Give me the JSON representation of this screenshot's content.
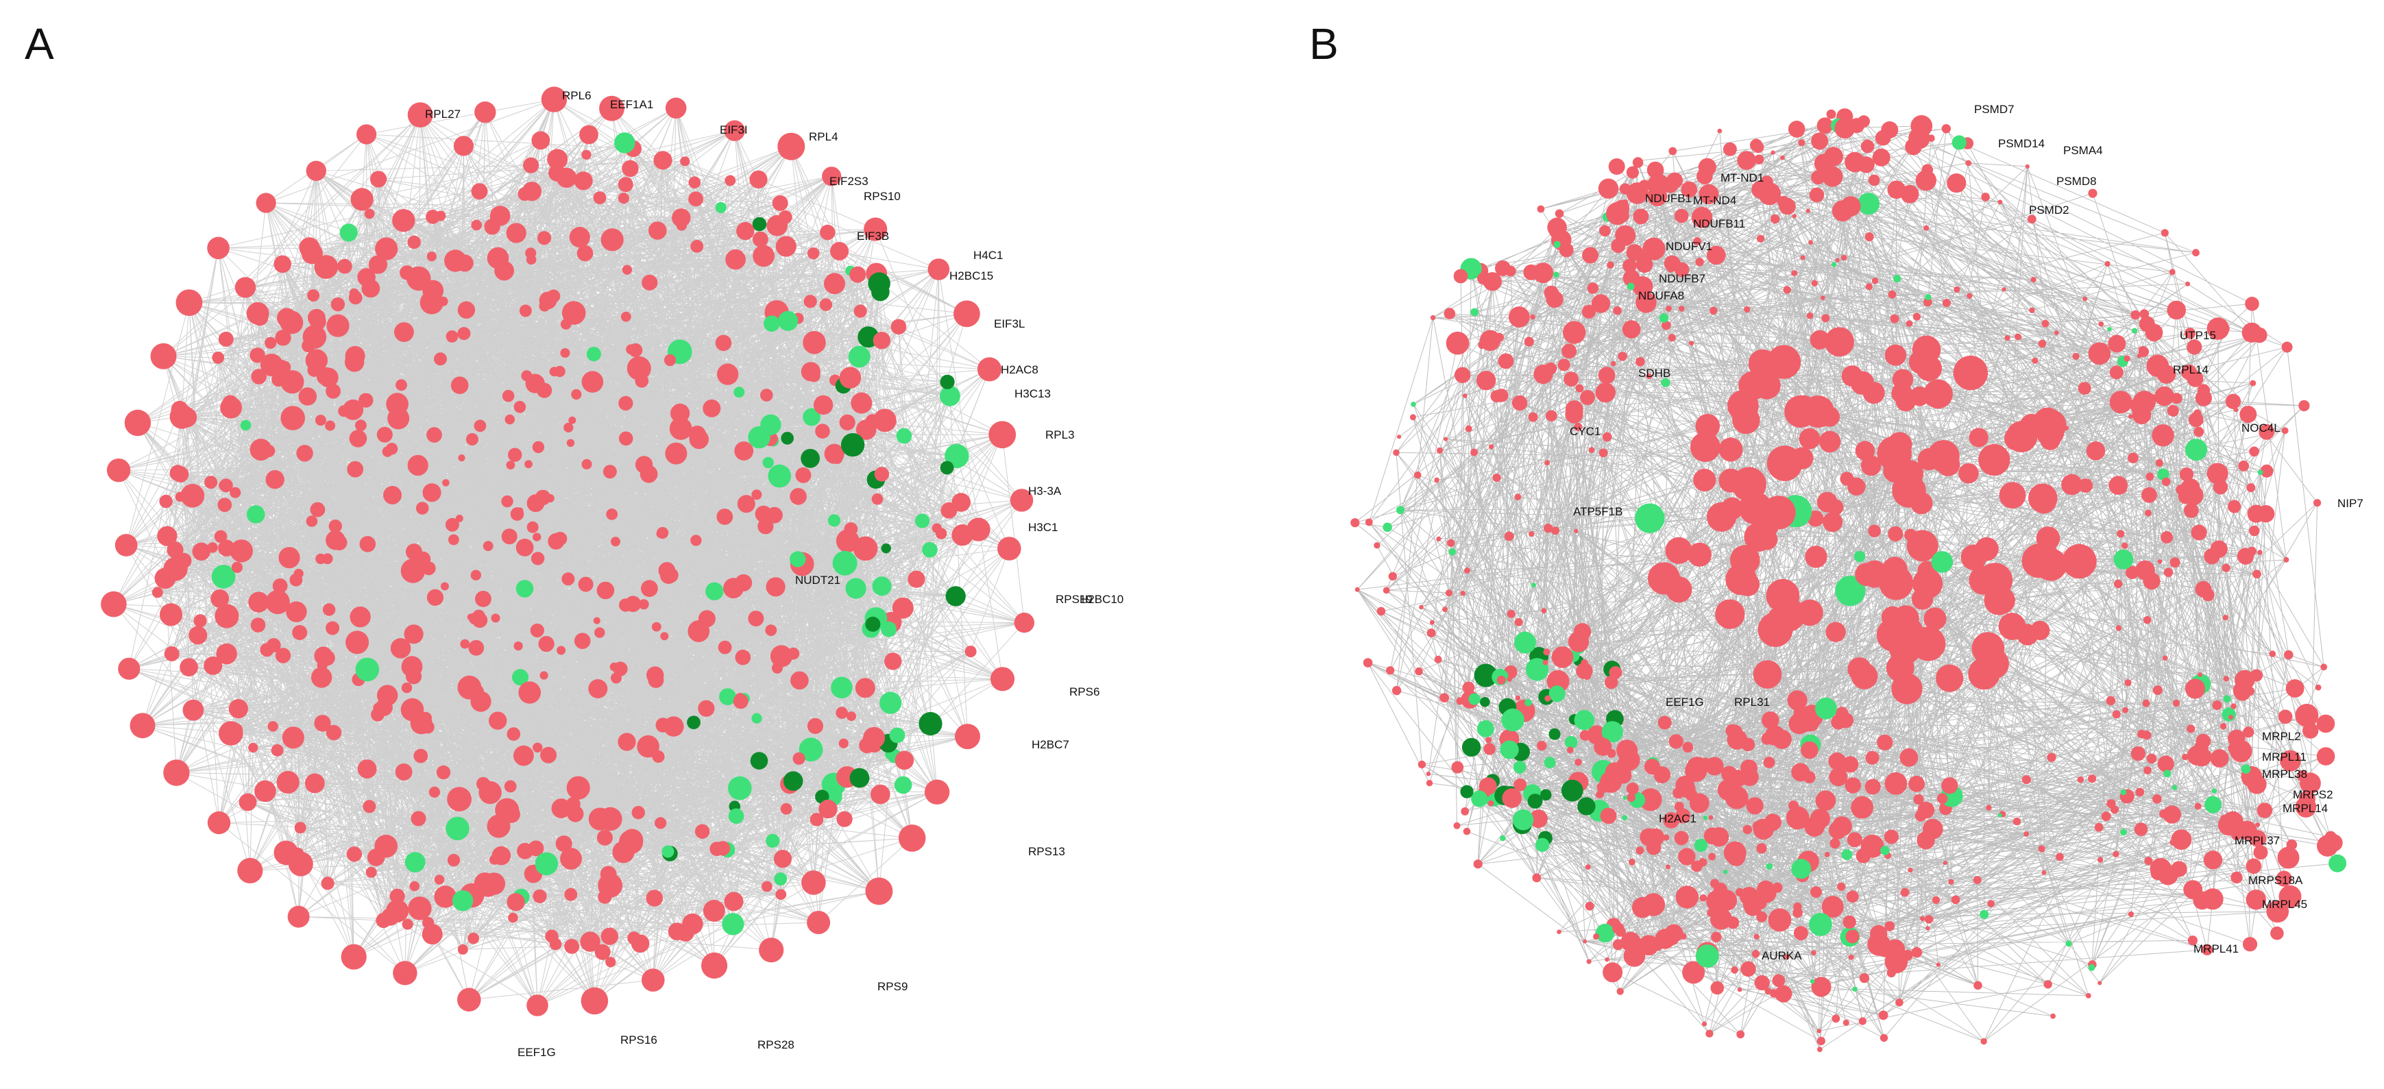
{
  "colors": {
    "edge": "#2b2b2b",
    "node_red": "#f0606a",
    "node_light_green": "#3fe07a",
    "node_dark_green": "#0c8a2a",
    "label": "#111111"
  },
  "panels": [
    {
      "letter": "A",
      "labels": [
        "RPL27",
        "RPL6",
        "EEF1A1",
        "EIF3I",
        "RPL4",
        "EIF2S3",
        "RPS10",
        "EIF3B",
        "H4C1",
        "H2BC15",
        "EIF3L",
        "H2AC8",
        "H3C13",
        "RPL3",
        "H3-3A",
        "H3C1",
        "RPS19",
        "H2BC10",
        "RPS6",
        "H2BC7",
        "RPS13",
        "RPS9",
        "RPS28",
        "RPS16",
        "EEF1G",
        "NUDT21"
      ]
    },
    {
      "letter": "B",
      "labels": [
        "PSMD7",
        "PSMD14",
        "PSMA4",
        "PSMD8",
        "PSMD2",
        "MT-ND1",
        "NDUFB1",
        "MT-ND4",
        "NDUFB11",
        "NDUFV1",
        "NDUFB7",
        "NDUFA8",
        "SDHB",
        "CYC1",
        "ATP5F1B",
        "UTP15",
        "NIP7",
        "NOC4L",
        "RPL14",
        "MRPL2",
        "MRPL11",
        "MRPL38",
        "MRPS2",
        "MRPL14",
        "MRPL37",
        "MRPS18A",
        "MRPL45",
        "MRPL41",
        "AURKA",
        "EEF1G",
        "RPL31",
        "H2AC1"
      ]
    }
  ]
}
